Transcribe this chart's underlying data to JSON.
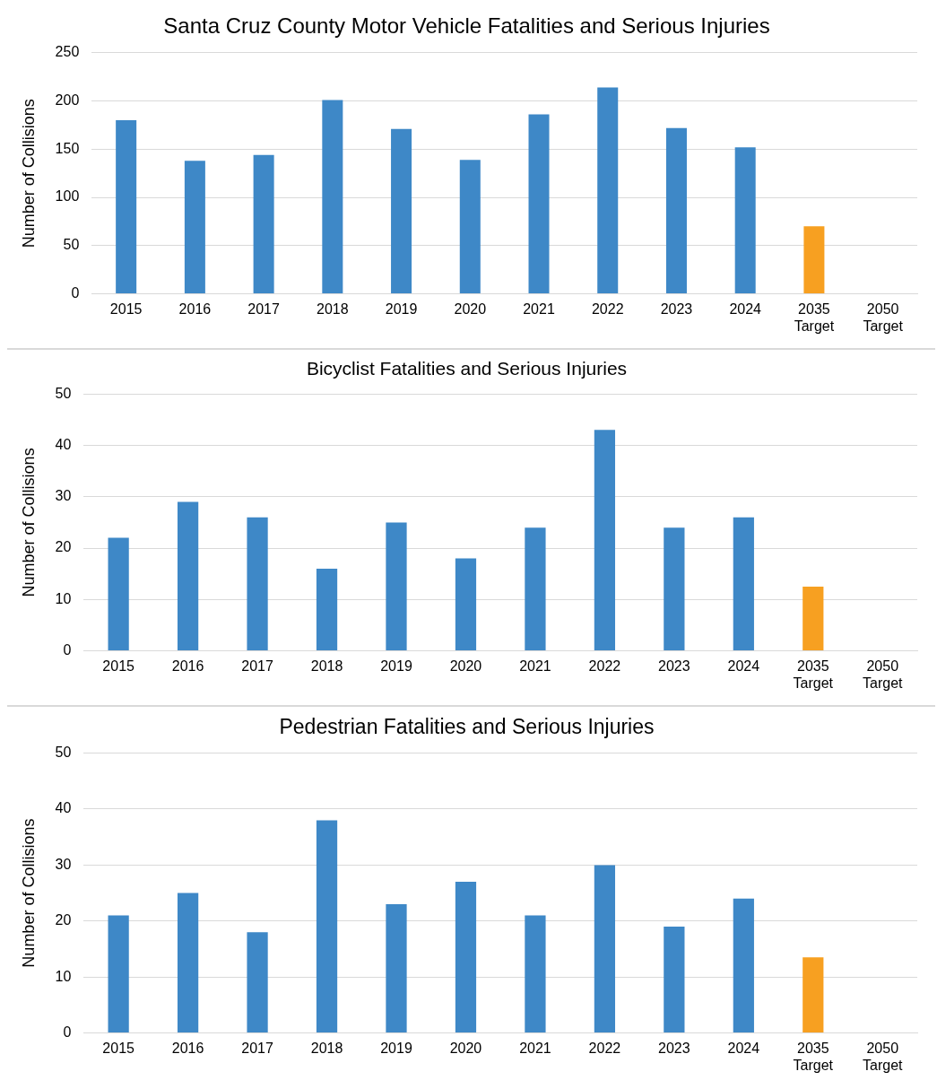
{
  "chart_data": [
    {
      "type": "bar",
      "title": "Santa Cruz County Motor Vehicle Fatalities and Serious Injuries",
      "ylabel": "Number of Collisions",
      "categories": [
        "2015",
        "2016",
        "2017",
        "2018",
        "2019",
        "2020",
        "2021",
        "2022",
        "2023",
        "2024",
        "2035 Target",
        "2050 Target"
      ],
      "values": [
        180,
        138,
        144,
        201,
        171,
        139,
        186,
        214,
        172,
        152,
        70,
        0
      ],
      "colors": [
        "#3e88c7",
        "#3e88c7",
        "#3e88c7",
        "#3e88c7",
        "#3e88c7",
        "#3e88c7",
        "#3e88c7",
        "#3e88c7",
        "#3e88c7",
        "#3e88c7",
        "#f7a021",
        "#f7a021"
      ],
      "ylim": [
        0,
        250
      ],
      "yticks": [
        0,
        50,
        100,
        150,
        200,
        250
      ],
      "grid": "y",
      "legend": false
    },
    {
      "type": "bar",
      "title": "Bicyclist Fatalities and Serious Injuries",
      "ylabel": "Number of Collisions",
      "categories": [
        "2015",
        "2016",
        "2017",
        "2018",
        "2019",
        "2020",
        "2021",
        "2022",
        "2023",
        "2024",
        "2035 Target",
        "2050 Target"
      ],
      "values": [
        22,
        29,
        26,
        16,
        25,
        18,
        24,
        43,
        24,
        26,
        12.5,
        0
      ],
      "colors": [
        "#3e88c7",
        "#3e88c7",
        "#3e88c7",
        "#3e88c7",
        "#3e88c7",
        "#3e88c7",
        "#3e88c7",
        "#3e88c7",
        "#3e88c7",
        "#3e88c7",
        "#f7a021",
        "#f7a021"
      ],
      "ylim": [
        0,
        50
      ],
      "yticks": [
        0,
        10,
        20,
        30,
        40,
        50
      ],
      "grid": "y",
      "legend": false
    },
    {
      "type": "bar",
      "title": "Pedestrian Fatalities and Serious Injuries",
      "ylabel": "Number of Collisions",
      "categories": [
        "2015",
        "2016",
        "2017",
        "2018",
        "2019",
        "2020",
        "2021",
        "2022",
        "2023",
        "2024",
        "2035 Target",
        "2050 Target"
      ],
      "values": [
        21,
        25,
        18,
        38,
        23,
        27,
        21,
        30,
        19,
        24,
        13.5,
        0
      ],
      "colors": [
        "#3e88c7",
        "#3e88c7",
        "#3e88c7",
        "#3e88c7",
        "#3e88c7",
        "#3e88c7",
        "#3e88c7",
        "#3e88c7",
        "#3e88c7",
        "#3e88c7",
        "#f7a021",
        "#f7a021"
      ],
      "ylim": [
        0,
        50
      ],
      "yticks": [
        0,
        10,
        20,
        30,
        40,
        50
      ],
      "grid": "y",
      "legend": false
    }
  ]
}
